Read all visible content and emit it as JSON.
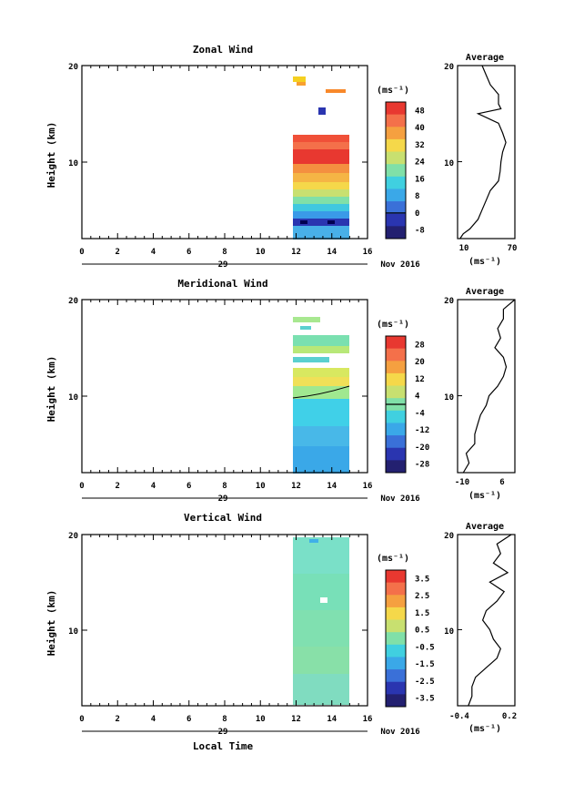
{
  "chart_data": [
    {
      "type": "heatmap",
      "title": "Zonal Wind",
      "ylabel": "Height (km)",
      "xlabel": "",
      "xlim": [
        0,
        16
      ],
      "ylim": [
        2,
        20
      ],
      "x_ticks": [
        "0",
        "2",
        "4",
        "6",
        "8",
        "10",
        "12",
        "14",
        "16"
      ],
      "y_ticks": [
        "10",
        "20"
      ],
      "date_marker": "29",
      "date_label": "Nov 2016",
      "data_time_range": [
        11.8,
        15.0
      ],
      "colorbar": {
        "unit": "(ms⁻¹)",
        "range": [
          -12,
          52
        ],
        "ticks": [
          "48",
          "40",
          "32",
          "24",
          "16",
          "8",
          "0",
          "-8"
        ],
        "contour": 0
      },
      "cells": [
        {
          "h0": 2,
          "h1": 3.2,
          "v": 14
        },
        {
          "h0": 3.2,
          "h1": 3.8,
          "v": -6
        },
        {
          "h0": 3.8,
          "h1": 5,
          "v": 12
        },
        {
          "h0": 5,
          "h1": 6,
          "v": 18
        },
        {
          "h0": 6,
          "h1": 7,
          "v": 24
        },
        {
          "h0": 7,
          "h1": 8,
          "v": 30
        },
        {
          "h0": 8,
          "h1": 9,
          "v": 36
        },
        {
          "h0": 9,
          "h1": 10,
          "v": 44
        },
        {
          "h0": 10,
          "h1": 11.3,
          "v": 50
        },
        {
          "h0": 11.3,
          "h1": 12.3,
          "v": 46
        },
        {
          "h0": 12.3,
          "h1": 12.8,
          "v": 40
        },
        {
          "h0": 18.5,
          "h1": 19,
          "v": 30
        },
        {
          "h0": 19,
          "h1": 19.5,
          "v": 26
        }
      ],
      "average": {
        "title": "Average",
        "unit": "(ms⁻¹)",
        "xlim": [
          5,
          75
        ],
        "x_ticks": [
          "10",
          "70"
        ],
        "y_ticks": [
          "10",
          "20"
        ],
        "heights": [
          2,
          2.5,
          3,
          4,
          5,
          6,
          7,
          8,
          9,
          10,
          11,
          12,
          13,
          14,
          15,
          15.5,
          16,
          17,
          18,
          19,
          20
        ],
        "values": [
          8,
          12,
          20,
          30,
          35,
          40,
          45,
          55,
          57,
          58,
          60,
          64,
          60,
          55,
          30,
          58,
          55,
          55,
          45,
          40,
          35
        ]
      }
    },
    {
      "type": "heatmap",
      "title": "Meridional Wind",
      "ylabel": "Height (km)",
      "xlabel": "",
      "xlim": [
        0,
        16
      ],
      "ylim": [
        2,
        20
      ],
      "x_ticks": [
        "0",
        "2",
        "4",
        "6",
        "8",
        "10",
        "12",
        "14",
        "16"
      ],
      "y_ticks": [
        "10",
        "20"
      ],
      "date_marker": "29",
      "date_label": "Nov 2016",
      "data_time_range": [
        11.8,
        15.0
      ],
      "colorbar": {
        "unit": "(ms⁻¹)",
        "range": [
          -32,
          32
        ],
        "ticks": [
          "28",
          "20",
          "12",
          "4",
          "-4",
          "-12",
          "-20",
          "-28"
        ],
        "contour": 0
      },
      "cells": [
        {
          "h0": 2,
          "h1": 4,
          "v": -12
        },
        {
          "h0": 4,
          "h1": 6,
          "v": -8
        },
        {
          "h0": 6,
          "h1": 8,
          "v": -6
        },
        {
          "h0": 8,
          "h1": 10,
          "v": -3
        },
        {
          "h0": 10,
          "h1": 11,
          "v": 4
        },
        {
          "h0": 11,
          "h1": 12,
          "v": 8
        },
        {
          "h0": 13,
          "h1": 14.5,
          "v": 0
        },
        {
          "h0": 15,
          "h1": 16,
          "v": -2
        },
        {
          "h0": 17,
          "h1": 18.5,
          "v": -1
        }
      ],
      "average": {
        "title": "Average",
        "unit": "(ms⁻¹)",
        "xlim": [
          -12,
          8
        ],
        "x_ticks": [
          "-10",
          "6"
        ],
        "y_ticks": [
          "10",
          "20"
        ],
        "heights": [
          2,
          3,
          4,
          5,
          6,
          7,
          8,
          9,
          10,
          11,
          12,
          13,
          14,
          15,
          16,
          17,
          18,
          19,
          20
        ],
        "values": [
          -10,
          -8,
          -9,
          -6,
          -6,
          -5,
          -4,
          -2,
          -1,
          2,
          4,
          5,
          4,
          1,
          3,
          2,
          4,
          4,
          8
        ]
      }
    },
    {
      "type": "heatmap",
      "title": "Vertical Wind",
      "ylabel": "Height (km)",
      "xlabel": "Local Time",
      "xlim": [
        0,
        16
      ],
      "ylim": [
        2,
        20
      ],
      "x_ticks": [
        "0",
        "2",
        "4",
        "6",
        "8",
        "10",
        "12",
        "14",
        "16"
      ],
      "y_ticks": [
        "10",
        "20"
      ],
      "date_marker": "29",
      "date_label": "Nov 2016",
      "data_time_range": [
        11.8,
        15.0
      ],
      "colorbar": {
        "unit": "(ms⁻¹)",
        "range": [
          -4,
          4
        ],
        "ticks": [
          "3.5",
          "2.5",
          "1.5",
          "0.5",
          "-0.5",
          "-1.5",
          "-2.5",
          "-3.5"
        ],
        "contour": null
      },
      "cells": [
        {
          "h0": 2,
          "h1": 6,
          "v": 0.2
        },
        {
          "h0": 6,
          "h1": 10,
          "v": 0.0
        },
        {
          "h0": 10,
          "h1": 14,
          "v": -0.2
        },
        {
          "h0": 14,
          "h1": 18,
          "v": -0.1
        },
        {
          "h0": 18,
          "h1": 20,
          "v": -0.3
        }
      ],
      "average": {
        "title": "Average",
        "unit": "(ms⁻¹)",
        "xlim": [
          -0.5,
          0.3
        ],
        "x_ticks": [
          "-0.4",
          "0.2"
        ],
        "y_ticks": [
          "10",
          "20"
        ],
        "heights": [
          2,
          3,
          4,
          5,
          6,
          7,
          8,
          9,
          10,
          11,
          12,
          13,
          14,
          15,
          16,
          17,
          18,
          19,
          20
        ],
        "values": [
          -0.35,
          -0.3,
          -0.3,
          -0.25,
          -0.1,
          0.05,
          0.1,
          0.0,
          -0.05,
          -0.15,
          -0.1,
          0.05,
          0.15,
          -0.05,
          0.2,
          0.0,
          0.1,
          0.05,
          0.25
        ]
      }
    }
  ]
}
